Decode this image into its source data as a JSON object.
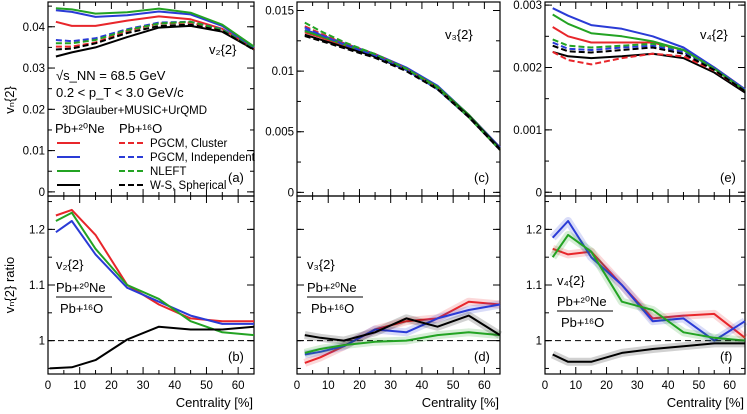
{
  "style": {
    "colors": {
      "PGCM, Cluster": "#e8262b",
      "PGCM, Independent": "#2a3bd6",
      "NLEFT": "#23a323",
      "W-S, Spherical": "#000000"
    },
    "ref_line_color": "#000000"
  },
  "chart_data": [
    {
      "id": "a",
      "type": "line",
      "panel_label": "(a)",
      "title": "v₂{2}",
      "ylabel": "vₙ{2}",
      "ylim": [
        -0.001,
        0.046
      ],
      "yticks": [
        0,
        0.01,
        0.02,
        0.03,
        0.04
      ],
      "ytick_labels": [
        "0",
        "0.01",
        "0.02",
        "0.03",
        "0.04"
      ],
      "annotations": [
        "√s_NN = 68.5 GeV",
        "0.2 < p_T < 3.0 GeV/c",
        "3DGlauber+MUSIC+UrQMD"
      ],
      "legend": {
        "header_ne": "Pb+²⁰Ne",
        "header_o": "Pb+¹⁶O",
        "entries": [
          "PGCM, Cluster",
          "PGCM, Independent",
          "NLEFT",
          "W-S, Spherical"
        ]
      },
      "x": [
        2.5,
        7.5,
        15,
        25,
        35,
        45,
        55,
        65
      ],
      "series": [
        {
          "name": "PGCM, Cluster",
          "system": "Pb+²⁰Ne",
          "values": [
            0.0412,
            0.0402,
            0.0402,
            0.0415,
            0.0425,
            0.0418,
            0.0395,
            0.0348
          ]
        },
        {
          "name": "PGCM, Independent",
          "system": "Pb+²⁰Ne",
          "values": [
            0.044,
            0.0436,
            0.0424,
            0.0428,
            0.0437,
            0.043,
            0.0402,
            0.035
          ]
        },
        {
          "name": "NLEFT",
          "system": "Pb+²⁰Ne",
          "values": [
            0.0445,
            0.0442,
            0.0432,
            0.0435,
            0.0444,
            0.0434,
            0.0405,
            0.0352
          ]
        },
        {
          "name": "W-S, Spherical",
          "system": "Pb+²⁰Ne",
          "values": [
            0.0328,
            0.0338,
            0.035,
            0.0375,
            0.0398,
            0.0402,
            0.0388,
            0.0345
          ]
        },
        {
          "name": "PGCM, Cluster",
          "system": "Pb+¹⁶O",
          "values": [
            0.0352,
            0.0352,
            0.0362,
            0.039,
            0.0408,
            0.041,
            0.0392,
            0.0346
          ]
        },
        {
          "name": "PGCM, Independent",
          "system": "Pb+¹⁶O",
          "values": [
            0.0368,
            0.0365,
            0.0372,
            0.0394,
            0.041,
            0.0412,
            0.0394,
            0.0347
          ]
        },
        {
          "name": "NLEFT",
          "system": "Pb+¹⁶O",
          "values": [
            0.036,
            0.036,
            0.0368,
            0.0392,
            0.0408,
            0.0412,
            0.0393,
            0.0346
          ]
        },
        {
          "name": "W-S, Spherical",
          "system": "Pb+¹⁶O",
          "values": [
            0.0345,
            0.0347,
            0.036,
            0.0385,
            0.0402,
            0.0405,
            0.039,
            0.0344
          ]
        }
      ]
    },
    {
      "id": "c",
      "type": "line",
      "panel_label": "(c)",
      "title": "v₃{2}",
      "ylim": [
        -0.0003,
        0.0157
      ],
      "yticks": [
        0,
        0.005,
        0.01,
        0.015
      ],
      "ytick_labels": [
        "0",
        "0.005",
        "0.01",
        "0.015"
      ],
      "x": [
        2.5,
        7.5,
        15,
        25,
        35,
        45,
        55,
        65
      ],
      "series": [
        {
          "name": "PGCM, Cluster",
          "system": "Pb+²⁰Ne",
          "values": [
            0.0132,
            0.0128,
            0.0121,
            0.0113,
            0.0102,
            0.0087,
            0.0064,
            0.0037
          ]
        },
        {
          "name": "PGCM, Independent",
          "system": "Pb+²⁰Ne",
          "values": [
            0.0134,
            0.013,
            0.0123,
            0.0114,
            0.0103,
            0.0088,
            0.0064,
            0.0037
          ]
        },
        {
          "name": "NLEFT",
          "system": "Pb+²⁰Ne",
          "values": [
            0.0133,
            0.0129,
            0.0122,
            0.0113,
            0.0102,
            0.0087,
            0.0064,
            0.0036
          ]
        },
        {
          "name": "W-S, Spherical",
          "system": "Pb+²⁰Ne",
          "values": [
            0.013,
            0.0126,
            0.012,
            0.0112,
            0.0101,
            0.0086,
            0.0063,
            0.0036
          ]
        },
        {
          "name": "PGCM, Cluster",
          "system": "Pb+¹⁶O",
          "values": [
            0.0137,
            0.0131,
            0.0123,
            0.0114,
            0.0102,
            0.0086,
            0.0062,
            0.0035
          ]
        },
        {
          "name": "PGCM, Independent",
          "system": "Pb+¹⁶O",
          "values": [
            0.0136,
            0.013,
            0.0122,
            0.0113,
            0.0101,
            0.0085,
            0.0062,
            0.0035
          ]
        },
        {
          "name": "NLEFT",
          "system": "Pb+¹⁶O",
          "values": [
            0.014,
            0.0133,
            0.0124,
            0.0114,
            0.0102,
            0.0086,
            0.0062,
            0.0035
          ]
        },
        {
          "name": "W-S, Spherical",
          "system": "Pb+¹⁶O",
          "values": [
            0.0129,
            0.0125,
            0.0119,
            0.0111,
            0.01,
            0.0085,
            0.0062,
            0.0035
          ]
        }
      ]
    },
    {
      "id": "e",
      "type": "line",
      "panel_label": "(e)",
      "title": "v₄{2}",
      "ylim": [
        -6e-05,
        0.00305
      ],
      "yticks": [
        0,
        0.001,
        0.002,
        0.003
      ],
      "ytick_labels": [
        "0",
        "0.001",
        "0.002",
        "0.003"
      ],
      "x": [
        2.5,
        7.5,
        15,
        25,
        35,
        45,
        55,
        65
      ],
      "series": [
        {
          "name": "PGCM, Cluster",
          "system": "Pb+²⁰Ne",
          "values": [
            0.00265,
            0.0025,
            0.0024,
            0.0024,
            0.0024,
            0.00228,
            0.002,
            0.00165
          ]
        },
        {
          "name": "PGCM, Independent",
          "system": "Pb+²⁰Ne",
          "values": [
            0.00295,
            0.00283,
            0.00268,
            0.00262,
            0.0025,
            0.00232,
            0.002,
            0.00165
          ]
        },
        {
          "name": "NLEFT",
          "system": "Pb+²⁰Ne",
          "values": [
            0.00285,
            0.0027,
            0.00255,
            0.0025,
            0.00242,
            0.00228,
            0.00198,
            0.00163
          ]
        },
        {
          "name": "W-S, Spherical",
          "system": "Pb+²⁰Ne",
          "values": [
            0.00225,
            0.00218,
            0.00215,
            0.00218,
            0.00222,
            0.00215,
            0.00192,
            0.0016
          ]
        },
        {
          "name": "PGCM, Cluster",
          "system": "Pb+¹⁶O",
          "values": [
            0.00225,
            0.00212,
            0.00205,
            0.00215,
            0.00222,
            0.00218,
            0.00195,
            0.00162
          ]
        },
        {
          "name": "PGCM, Independent",
          "system": "Pb+¹⁶O",
          "values": [
            0.0024,
            0.0023,
            0.00228,
            0.00232,
            0.00235,
            0.00225,
            0.00198,
            0.00163
          ]
        },
        {
          "name": "NLEFT",
          "system": "Pb+¹⁶O",
          "values": [
            0.00245,
            0.00235,
            0.00232,
            0.00235,
            0.00238,
            0.00228,
            0.00198,
            0.00163
          ]
        },
        {
          "name": "W-S, Spherical",
          "system": "Pb+¹⁶O",
          "values": [
            0.00235,
            0.00226,
            0.00224,
            0.00228,
            0.00232,
            0.00222,
            0.00196,
            0.00162
          ]
        }
      ]
    },
    {
      "id": "b",
      "type": "line",
      "panel_label": "(b)",
      "ylabel": "vₙ{2} ratio",
      "xlabel": "Centrality [%]",
      "ratio_label": "v₂{2}",
      "ratio_num": "Pb+²⁰Ne",
      "ratio_den": "Pb+¹⁶O",
      "ylim": [
        0.94,
        1.26
      ],
      "yticks": [
        1.0,
        1.1,
        1.2
      ],
      "ytick_labels": [
        "1",
        "1.1",
        "1.2"
      ],
      "xlim": [
        0,
        65
      ],
      "xticks": [
        0,
        10,
        20,
        30,
        40,
        50,
        60
      ],
      "xtick_labels": [
        "0",
        "10",
        "20",
        "30",
        "40",
        "50",
        "60"
      ],
      "reference_line": 1.0,
      "series": [
        {
          "name": "PGCM, Cluster",
          "x": [
            2.5,
            7.5,
            15,
            25,
            35,
            45,
            55,
            65
          ],
          "values": [
            1.225,
            1.235,
            1.19,
            1.1,
            1.065,
            1.04,
            1.035,
            1.035
          ]
        },
        {
          "name": "PGCM, Independent",
          "x": [
            2.5,
            7.5,
            15,
            25,
            35,
            45,
            55,
            65
          ],
          "values": [
            1.195,
            1.215,
            1.155,
            1.095,
            1.07,
            1.045,
            1.03,
            1.03
          ]
        },
        {
          "name": "NLEFT",
          "x": [
            2.5,
            7.5,
            15,
            25,
            35,
            45,
            55,
            65
          ],
          "values": [
            1.215,
            1.23,
            1.165,
            1.1,
            1.075,
            1.035,
            1.015,
            1.01
          ]
        },
        {
          "name": "W-S, Spherical",
          "x": [
            0.5,
            7.5,
            15,
            25,
            35,
            45,
            55,
            65
          ],
          "values": [
            0.95,
            0.952,
            0.965,
            1.002,
            1.025,
            1.02,
            1.02,
            1.025
          ]
        }
      ]
    },
    {
      "id": "d",
      "type": "line",
      "panel_label": "(d)",
      "xlabel": "Centrality [%]",
      "ratio_label": "v₃{2}",
      "ratio_num": "Pb+²⁰Ne",
      "ratio_den": "Pb+¹⁶O",
      "ylim": [
        0.94,
        1.26
      ],
      "yticks": [
        1.0,
        1.1,
        1.2
      ],
      "ytick_labels": [
        "1",
        "1.1",
        "1.2"
      ],
      "xlim": [
        0,
        65
      ],
      "xticks": [
        0,
        10,
        20,
        30,
        40,
        50,
        60
      ],
      "xtick_labels": [
        "0",
        "10",
        "20",
        "30",
        "40",
        "50",
        "60"
      ],
      "reference_line": 1.0,
      "series": [
        {
          "name": "PGCM, Cluster",
          "x": [
            2.5,
            7.5,
            15,
            25,
            35,
            45,
            55,
            65
          ],
          "values": [
            0.96,
            0.97,
            0.99,
            1.02,
            1.035,
            1.04,
            1.07,
            1.065
          ]
        },
        {
          "name": "PGCM, Independent",
          "x": [
            2.5,
            7.5,
            15,
            25,
            35,
            45,
            55,
            65
          ],
          "values": [
            0.975,
            0.98,
            0.99,
            1.02,
            1.015,
            1.04,
            1.055,
            1.065
          ]
        },
        {
          "name": "NLEFT",
          "x": [
            2.5,
            7.5,
            15,
            25,
            35,
            45,
            55,
            65
          ],
          "values": [
            0.978,
            0.985,
            0.992,
            0.998,
            1.0,
            1.01,
            1.015,
            1.01
          ]
        },
        {
          "name": "W-S, Spherical",
          "x": [
            2.5,
            7.5,
            15,
            25,
            35,
            45,
            55,
            65
          ],
          "values": [
            1.01,
            1.005,
            1.0,
            1.015,
            1.04,
            1.025,
            1.045,
            1.01
          ]
        }
      ]
    },
    {
      "id": "f",
      "type": "line",
      "panel_label": "(f)",
      "xlabel": "Centrality [%]",
      "ratio_label": "v₄{2}",
      "ratio_num": "Pb+²⁰Ne",
      "ratio_den": "Pb+¹⁶O",
      "ylim": [
        0.94,
        1.26
      ],
      "yticks": [
        1.0,
        1.1,
        1.2
      ],
      "ytick_labels": [
        "1",
        "1.1",
        "1.2"
      ],
      "xlim": [
        0,
        65
      ],
      "xticks": [
        0,
        10,
        20,
        30,
        40,
        50,
        60
      ],
      "xtick_labels": [
        "0",
        "10",
        "20",
        "30",
        "40",
        "50",
        "60"
      ],
      "reference_line": 1.0,
      "series": [
        {
          "name": "PGCM, Cluster",
          "x": [
            2.5,
            7.5,
            15,
            25,
            35,
            45,
            55,
            65
          ],
          "values": [
            1.165,
            1.155,
            1.16,
            1.1,
            1.04,
            1.045,
            1.048,
            1.005
          ]
        },
        {
          "name": "PGCM, Independent",
          "x": [
            2.5,
            7.5,
            15,
            25,
            35,
            45,
            55,
            65
          ],
          "values": [
            1.185,
            1.215,
            1.15,
            1.1,
            1.035,
            1.04,
            1.0,
            1.035
          ]
        },
        {
          "name": "NLEFT",
          "x": [
            2.5,
            7.5,
            15,
            25,
            35,
            45,
            55,
            65
          ],
          "values": [
            1.15,
            1.19,
            1.16,
            1.07,
            1.055,
            1.015,
            1.005,
            1.0
          ]
        },
        {
          "name": "W-S, Spherical",
          "x": [
            2.5,
            7.5,
            15,
            25,
            35,
            45,
            55,
            65
          ],
          "values": [
            0.975,
            0.962,
            0.962,
            0.978,
            0.985,
            0.99,
            0.995,
            0.995
          ]
        }
      ]
    }
  ]
}
